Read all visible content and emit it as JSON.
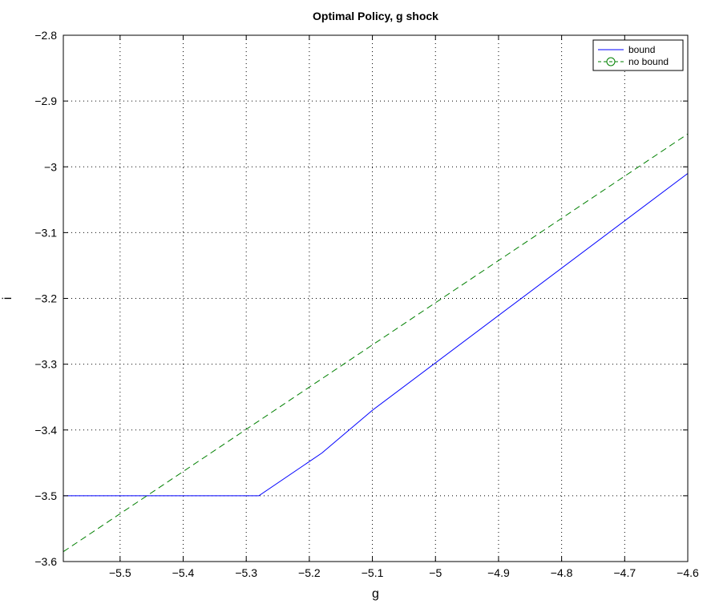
{
  "chart_data": {
    "type": "line",
    "title": "Optimal Policy, g shock",
    "xlabel": "g",
    "ylabel": "i",
    "xlim": [
      -5.59,
      -4.6
    ],
    "ylim": [
      -3.6,
      -2.8
    ],
    "xticks": [
      -5.5,
      -5.4,
      -5.3,
      -5.2,
      -5.1,
      -5.0,
      -4.9,
      -4.8,
      -4.7,
      -4.6
    ],
    "xtick_labels": [
      "−5.5",
      "−5.4",
      "−5.3",
      "−5.2",
      "−5.1",
      "−5",
      "−4.9",
      "−4.8",
      "−4.7",
      "−4.6"
    ],
    "yticks": [
      -3.6,
      -3.5,
      -3.4,
      -3.3,
      -3.2,
      -3.1,
      -3.0,
      -2.9,
      -2.8
    ],
    "ytick_labels": [
      "−3.6",
      "−3.5",
      "−3.4",
      "−3.3",
      "−3.2",
      "−3.1",
      "−3",
      "−2.9",
      "−2.8"
    ],
    "grid": true,
    "legend_position": "top-right",
    "series": [
      {
        "name": "bound",
        "color": "#0000ff",
        "style": "solid",
        "marker": "none",
        "x": [
          -5.59,
          -5.28,
          -5.18,
          -5.1,
          -4.6
        ],
        "y": [
          -3.5,
          -3.5,
          -3.435,
          -3.37,
          -3.01
        ]
      },
      {
        "name": "no bound",
        "color": "#008000",
        "style": "dashed",
        "marker": "circle",
        "x": [
          -5.59,
          -4.6
        ],
        "y": [
          -3.585,
          -2.95
        ]
      }
    ]
  }
}
